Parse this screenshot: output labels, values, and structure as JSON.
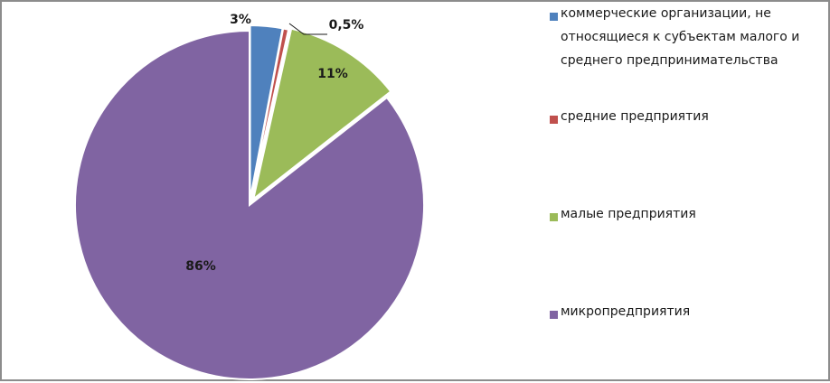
{
  "chart_data": {
    "type": "pie",
    "slices": [
      {
        "label": "коммерческие организации, не относящиеся к субъектам малого и среднего предпринимательства",
        "value": 3,
        "display": "3%",
        "color": "#4F81BD"
      },
      {
        "label": "средние предприятия",
        "value": 0.5,
        "display": "0,5%",
        "color": "#C0504D"
      },
      {
        "label": "малые предприятия",
        "value": 11,
        "display": "11%",
        "color": "#9BBB59"
      },
      {
        "label": "микропредприятия",
        "value": 86,
        "display": "86%",
        "color": "#8064A2"
      }
    ],
    "legend_position": "right"
  },
  "legend": {
    "items": [
      {
        "label": "коммерческие организации, не относящиеся к субъектам малого и среднего предпринимательства",
        "color": "#4F81BD"
      },
      {
        "label": "средние предприятия",
        "color": "#C0504D"
      },
      {
        "label": "малые предприятия",
        "color": "#9BBB59"
      },
      {
        "label": "микропредприятия",
        "color": "#8064A2"
      }
    ]
  }
}
